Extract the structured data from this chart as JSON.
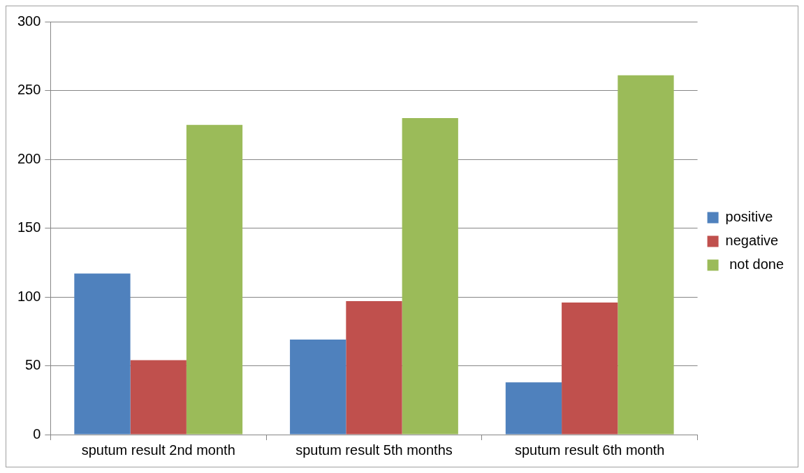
{
  "chart_data": {
    "type": "bar",
    "categories": [
      "sputum result 2nd month",
      "sputum result 5th months",
      "sputum result 6th month"
    ],
    "series": [
      {
        "name": "positive",
        "color": "#4f81bd",
        "values": [
          117,
          69,
          38
        ]
      },
      {
        "name": "negative",
        "color": "#c0504d",
        "values": [
          54,
          97,
          96
        ]
      },
      {
        "name": " not done",
        "color": "#9bbb59",
        "values": [
          225,
          230,
          261
        ]
      }
    ],
    "ylim": [
      0,
      300
    ],
    "yticks": [
      0,
      50,
      100,
      150,
      200,
      250,
      300
    ],
    "grid": "y",
    "legend": "right"
  }
}
